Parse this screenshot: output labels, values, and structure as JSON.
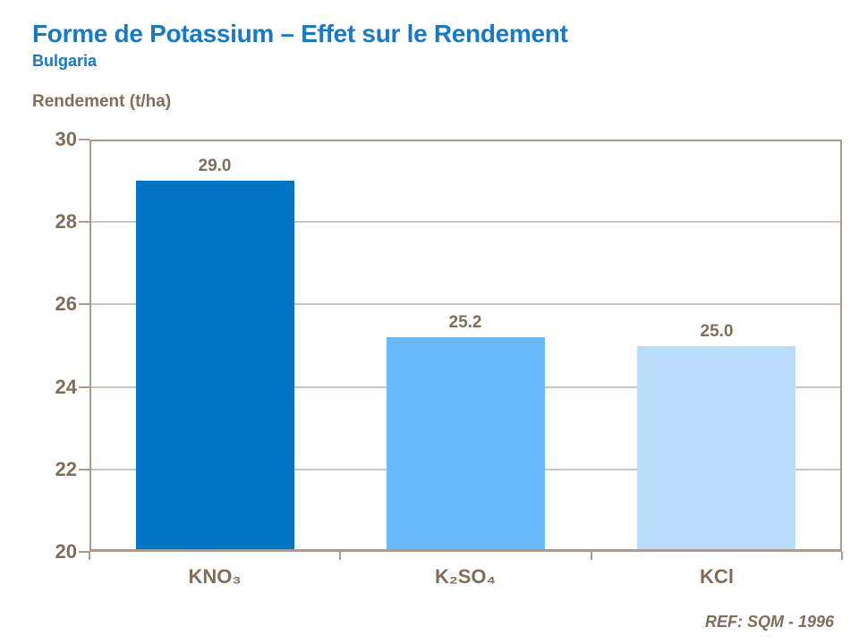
{
  "header": {
    "title": "Forme de Potassium – Effet sur le Rendement",
    "subtitle": "Bulgaria"
  },
  "footer": {
    "reference": "REF: SQM - 1996"
  },
  "colors": {
    "title_blue": "#1779C9",
    "text_brown": "#7D6E5D",
    "frame": "#A69C92",
    "grid": "#CCC5BC",
    "background": "#FFFFFF"
  },
  "chart_data": {
    "type": "bar",
    "title": "Forme de Potassium – Effet sur le Rendement",
    "subtitle": "Bulgaria",
    "xlabel": "",
    "ylabel": "Rendement (t/ha)",
    "categories": [
      "KNO₃",
      "K₂SO₄",
      "KCl"
    ],
    "values": [
      29.0,
      25.2,
      25.0
    ],
    "value_labels": [
      "29.0",
      "25.2",
      "25.0"
    ],
    "bar_colors": [
      "#0273C5",
      "#64BAFB",
      "#B9DDFB"
    ],
    "ylim": [
      20,
      30
    ],
    "yticks": [
      20,
      22,
      24,
      26,
      28,
      30
    ],
    "grid": true,
    "legend_position": "none",
    "annotation": "REF: SQM - 1996"
  }
}
